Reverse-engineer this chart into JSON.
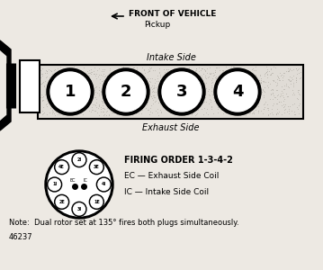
{
  "bg_color": "#ede9e3",
  "arrow_text": "FRONT OF VEHICLE",
  "pickup_text": "Pickup",
  "intake_label": "Intake Side",
  "exhaust_label": "Exhaust Side",
  "cylinder_numbers": [
    "1",
    "2",
    "3",
    "4"
  ],
  "firing_order_text": "FIRING ORDER 1-3-4-2",
  "ec_text": "EC — Exhaust Side Coil",
  "ic_text": "IC — Intake Side Coil",
  "note_text": "Note:  Dual rotor set at 135° fires both plugs simultaneously.",
  "diagram_num": "46237",
  "dist_labels_angles": [
    [
      "4E",
      135
    ],
    [
      "2I",
      90
    ],
    [
      "3E",
      45
    ],
    [
      "1I",
      180
    ],
    [
      "4I",
      0
    ],
    [
      "2E",
      225
    ],
    [
      "3I",
      270
    ],
    [
      "1E",
      315
    ]
  ]
}
